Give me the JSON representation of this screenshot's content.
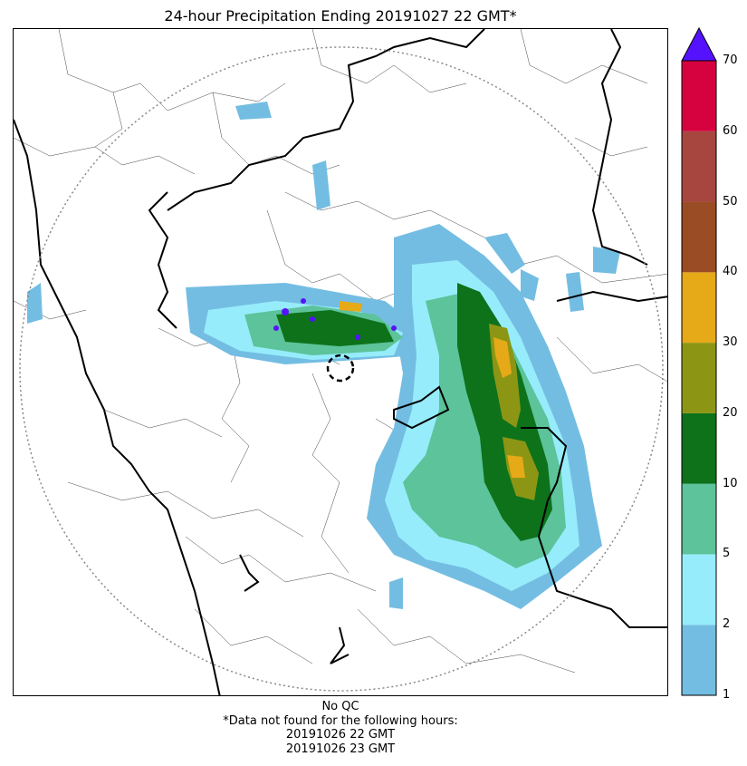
{
  "title": "24-hour Precipitation Ending 20191027 22 GMT*",
  "colorbar": {
    "ticks": [
      "1",
      "2",
      "5",
      "10",
      "20",
      "30",
      "40",
      "50",
      "60",
      "70"
    ],
    "colors": [
      "#74bde2",
      "#96ecfb",
      "#5cc39a",
      "#0d721a",
      "#8c9614",
      "#e6a917",
      "#9a4d24",
      "#a6463f",
      "#d6023f"
    ],
    "extend_color": "#5512fe"
  },
  "footer": {
    "qc": "No QC",
    "note": "*Data not found for the following hours:",
    "hours": [
      "20191026 22 GMT",
      "20191026 23 GMT"
    ]
  }
}
